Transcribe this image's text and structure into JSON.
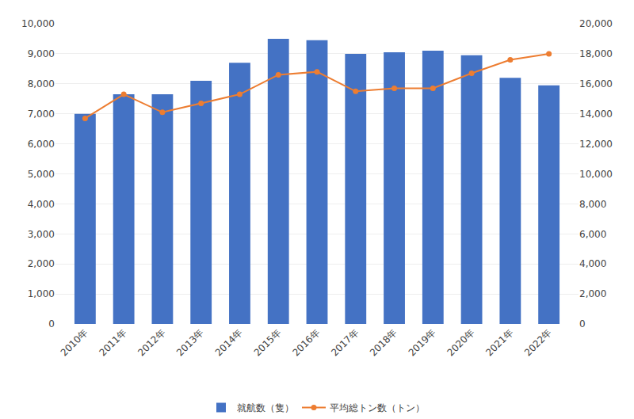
{
  "chart_data": {
    "type": "bar",
    "categories": [
      "2010年",
      "2011年",
      "2012年",
      "2013年",
      "2014年",
      "2015年",
      "2016年",
      "2017年",
      "2018年",
      "2019年",
      "2020年",
      "2021年",
      "2022年"
    ],
    "series": [
      {
        "name": "就航数（隻）",
        "type": "bar",
        "color": "#4472C4",
        "values": [
          7000,
          7650,
          7650,
          8100,
          8700,
          9500,
          9450,
          9000,
          9050,
          9100,
          8950,
          8200,
          7950
        ]
      },
      {
        "name": "平均総トン数（トン）",
        "type": "line",
        "color": "#ED7D31",
        "axis": "y2",
        "marker": "circle",
        "line_style": "solid",
        "values": [
          13700,
          15300,
          14100,
          14700,
          15300,
          16600,
          16800,
          15500,
          15700,
          15700,
          16700,
          17600,
          18000
        ]
      }
    ],
    "ylim": [
      0,
      10000
    ],
    "yticks": [
      0,
      {
        "value": 1000,
        "label": "1,000"
      },
      {
        "value": 2000,
        "label": "2,000"
      },
      {
        "value": 3000,
        "label": "3,000"
      },
      {
        "value": 4000,
        "label": "4,000"
      },
      {
        "value": 5000,
        "label": "5,000"
      },
      {
        "value": 6000,
        "label": "6,000"
      },
      {
        "value": 7000,
        "label": "7,000"
      },
      {
        "value": 8000,
        "label": "8,000"
      },
      {
        "value": 9000,
        "label": "9,000"
      },
      {
        "value": 10000,
        "label": "10,000"
      }
    ],
    "y2lim": [
      0,
      20000
    ],
    "y2ticks": [
      0,
      {
        "value": 2000,
        "label": "2,000"
      },
      {
        "value": 4000,
        "label": "4,000"
      },
      {
        "value": 6000,
        "label": "6,000"
      },
      {
        "value": 8000,
        "label": "8,000"
      },
      {
        "value": 10000,
        "label": "10,000"
      },
      {
        "value": 12000,
        "label": "12,000"
      },
      {
        "value": 14000,
        "label": "14,000"
      },
      {
        "value": 16000,
        "label": "16,000"
      },
      {
        "value": 18000,
        "label": "18,000"
      },
      {
        "value": 20000,
        "label": "20,000"
      }
    ],
    "grid": true,
    "legend": "bottom"
  }
}
